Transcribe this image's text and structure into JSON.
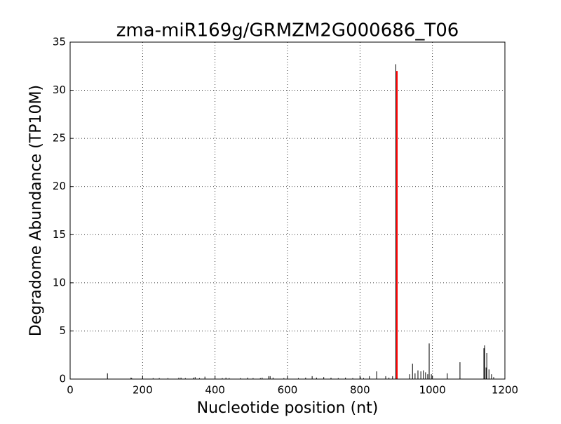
{
  "chart_data": {
    "type": "bar",
    "title": "zma-miR169g/GRMZM2G000686_T06",
    "xlabel": "Nucleotide position (nt)",
    "ylabel": "Degradome Abundance (TP10M)",
    "xlim": [
      0,
      1200
    ],
    "xticks": [
      0,
      200,
      400,
      600,
      800,
      1000,
      1200
    ],
    "ylim": [
      0,
      35
    ],
    "yticks": [
      0,
      5,
      10,
      15,
      20,
      25,
      30,
      35
    ],
    "grid": true,
    "series": [
      {
        "color": "#000000",
        "x": [
          103,
          168,
          170,
          200,
          229,
          246,
          270,
          300,
          306,
          318,
          340,
          345,
          357,
          372,
          420,
          430,
          439,
          470,
          490,
          505,
          525,
          530,
          548,
          552,
          560,
          590,
          600,
          630,
          650,
          668,
          680,
          700,
          720,
          740,
          760,
          780,
          801,
          810,
          826,
          846,
          871,
          880,
          890,
          899,
          937,
          945,
          952,
          960,
          968,
          975,
          981,
          987,
          991,
          997,
          1041,
          1076,
          1142,
          1144,
          1148,
          1150,
          1156,
          1163,
          1169
        ],
        "values": [
          0.6,
          0.15,
          0.1,
          0.1,
          0.1,
          0.1,
          0.1,
          0.15,
          0.15,
          0.1,
          0.15,
          0.2,
          0.1,
          0.25,
          0.1,
          0.15,
          0.1,
          0.1,
          0.15,
          0.1,
          0.1,
          0.15,
          0.3,
          0.3,
          0.15,
          0.1,
          0.2,
          0.1,
          0.15,
          0.3,
          0.15,
          0.2,
          0.15,
          0.1,
          0.15,
          0.1,
          0.2,
          0.1,
          0.3,
          0.8,
          0.3,
          0.15,
          0.3,
          32.7,
          0.5,
          1.6,
          0.6,
          0.9,
          0.8,
          0.9,
          0.7,
          0.5,
          3.7,
          0.5,
          0.6,
          1.75,
          3.2,
          3.5,
          1.2,
          2.7,
          1.0,
          0.5,
          0.2
        ]
      },
      {
        "color": "#ff0000",
        "x": [
          902
        ],
        "values": [
          32.0
        ]
      }
    ]
  }
}
